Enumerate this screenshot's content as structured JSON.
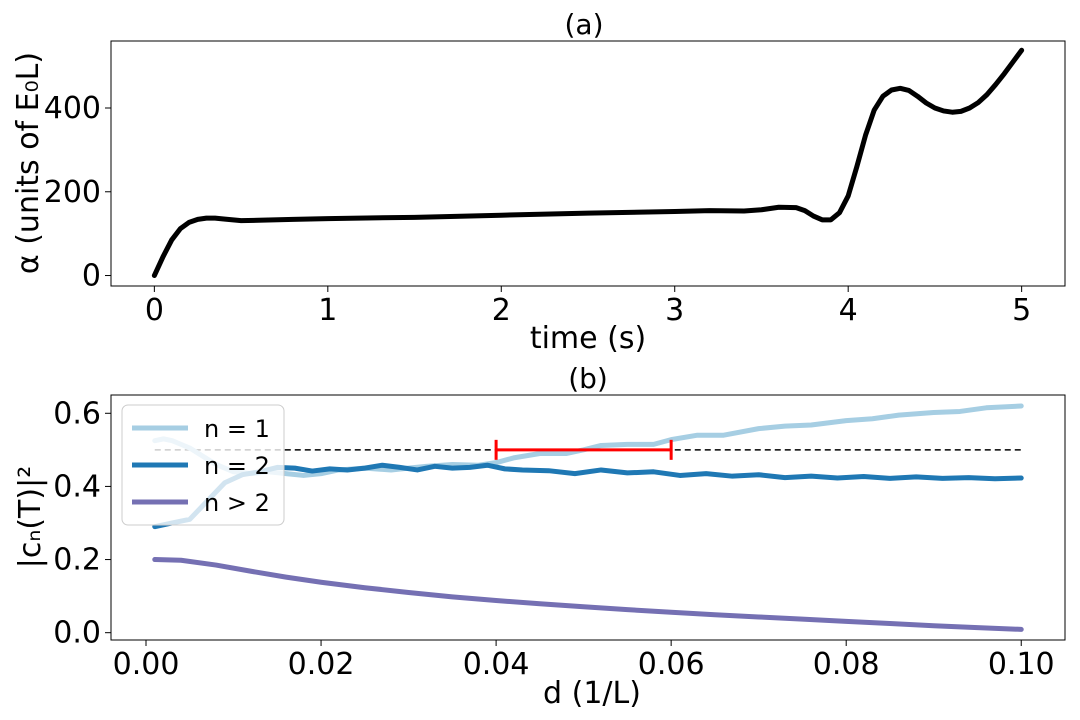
{
  "chart_data": [
    {
      "type": "line",
      "title": "(a)",
      "xlabel": "time (s)",
      "ylabel": "α (units of E₀L)",
      "xlim": [
        -0.25,
        5.25
      ],
      "ylim": [
        -25,
        560
      ],
      "xticks": [
        0,
        1,
        2,
        3,
        4,
        5
      ],
      "xtick_labels": [
        "0",
        "1",
        "2",
        "3",
        "4",
        "5"
      ],
      "yticks": [
        0,
        200,
        400
      ],
      "ytick_labels": [
        "0",
        "200",
        "400"
      ],
      "series": [
        {
          "name": "alpha",
          "color": "#000000",
          "x": [
            0,
            0.05,
            0.1,
            0.15,
            0.2,
            0.25,
            0.3,
            0.35,
            0.4,
            0.5,
            0.6,
            0.8,
            1.0,
            1.5,
            2.0,
            2.5,
            3.0,
            3.2,
            3.4,
            3.5,
            3.6,
            3.7,
            3.75,
            3.8,
            3.85,
            3.9,
            3.95,
            4.0,
            4.05,
            4.1,
            4.15,
            4.2,
            4.25,
            4.3,
            4.35,
            4.4,
            4.45,
            4.5,
            4.55,
            4.6,
            4.65,
            4.7,
            4.75,
            4.8,
            4.85,
            4.9,
            4.95,
            5.0
          ],
          "y": [
            0,
            45,
            85,
            112,
            127,
            134,
            137,
            137,
            135,
            131,
            132,
            134,
            136,
            139,
            144,
            149,
            153,
            155,
            154,
            157,
            163,
            162,
            155,
            142,
            133,
            133,
            150,
            190,
            260,
            335,
            395,
            428,
            443,
            447,
            442,
            428,
            412,
            400,
            393,
            390,
            392,
            400,
            413,
            432,
            456,
            482,
            510,
            538
          ]
        }
      ]
    },
    {
      "type": "line",
      "title": "(b)",
      "xlabel": "d (1/L)",
      "ylabel": "|cₙ(T)|²",
      "xlim": [
        -0.004,
        0.105
      ],
      "ylim": [
        -0.02,
        0.65
      ],
      "xticks": [
        0,
        0.02,
        0.04,
        0.06,
        0.08,
        0.1
      ],
      "xtick_labels": [
        "0.00",
        "0.02",
        "0.04",
        "0.06",
        "0.08",
        "0.10"
      ],
      "yticks": [
        0,
        0.2,
        0.4,
        0.6
      ],
      "ytick_labels": [
        "0.0",
        "0.2",
        "0.4",
        "0.6"
      ],
      "legend": {
        "position": "top-left",
        "entries": [
          "n = 1",
          "n = 2",
          "n > 2"
        ]
      },
      "series": [
        {
          "name": "n = 1",
          "color": "#a6cee3",
          "x": [
            0.001,
            0.002,
            0.003,
            0.004,
            0.005,
            0.006,
            0.007,
            0.008,
            0.01,
            0.012,
            0.014,
            0.016,
            0.018,
            0.02,
            0.022,
            0.025,
            0.028,
            0.03,
            0.032,
            0.035,
            0.038,
            0.04,
            0.042,
            0.045,
            0.048,
            0.05,
            0.052,
            0.055,
            0.058,
            0.06,
            0.063,
            0.066,
            0.07,
            0.073,
            0.076,
            0.08,
            0.083,
            0.086,
            0.09,
            0.093,
            0.096,
            0.1
          ],
          "y": [
            0.525,
            0.53,
            0.525,
            0.515,
            0.505,
            0.49,
            0.475,
            0.46,
            0.44,
            0.435,
            0.44,
            0.435,
            0.43,
            0.435,
            0.445,
            0.45,
            0.445,
            0.45,
            0.455,
            0.46,
            0.458,
            0.465,
            0.478,
            0.49,
            0.49,
            0.5,
            0.512,
            0.515,
            0.515,
            0.528,
            0.54,
            0.54,
            0.558,
            0.565,
            0.568,
            0.58,
            0.585,
            0.595,
            0.602,
            0.605,
            0.615,
            0.62
          ]
        },
        {
          "name": "n = 2",
          "color": "#1f78b4",
          "x": [
            0.001,
            0.003,
            0.005,
            0.007,
            0.009,
            0.011,
            0.013,
            0.015,
            0.017,
            0.019,
            0.021,
            0.023,
            0.025,
            0.027,
            0.029,
            0.031,
            0.033,
            0.035,
            0.037,
            0.039,
            0.041,
            0.043,
            0.046,
            0.049,
            0.052,
            0.055,
            0.058,
            0.061,
            0.064,
            0.067,
            0.07,
            0.073,
            0.076,
            0.079,
            0.082,
            0.085,
            0.088,
            0.091,
            0.094,
            0.097,
            0.1
          ],
          "y": [
            0.29,
            0.3,
            0.31,
            0.36,
            0.41,
            0.432,
            0.44,
            0.452,
            0.45,
            0.442,
            0.448,
            0.445,
            0.45,
            0.458,
            0.452,
            0.445,
            0.455,
            0.45,
            0.452,
            0.458,
            0.448,
            0.445,
            0.443,
            0.435,
            0.445,
            0.437,
            0.44,
            0.43,
            0.435,
            0.428,
            0.432,
            0.424,
            0.428,
            0.423,
            0.427,
            0.422,
            0.426,
            0.422,
            0.424,
            0.421,
            0.423
          ]
        },
        {
          "name": "n > 2",
          "color": "#7570b3",
          "x": [
            0.001,
            0.004,
            0.008,
            0.012,
            0.016,
            0.02,
            0.025,
            0.03,
            0.035,
            0.04,
            0.045,
            0.05,
            0.055,
            0.06,
            0.065,
            0.07,
            0.075,
            0.08,
            0.085,
            0.09,
            0.095,
            0.1
          ],
          "y": [
            0.2,
            0.198,
            0.185,
            0.168,
            0.152,
            0.138,
            0.123,
            0.11,
            0.098,
            0.088,
            0.079,
            0.071,
            0.063,
            0.056,
            0.049,
            0.043,
            0.037,
            0.031,
            0.025,
            0.019,
            0.014,
            0.009
          ]
        }
      ],
      "reference_line": {
        "y": 0.5,
        "x_from": 0.001,
        "x_to": 0.1,
        "style": "dashed",
        "color": "#000000"
      },
      "interval_marker": {
        "x_from": 0.04,
        "x_to": 0.06,
        "y": 0.5,
        "color": "#ff0000"
      }
    }
  ]
}
